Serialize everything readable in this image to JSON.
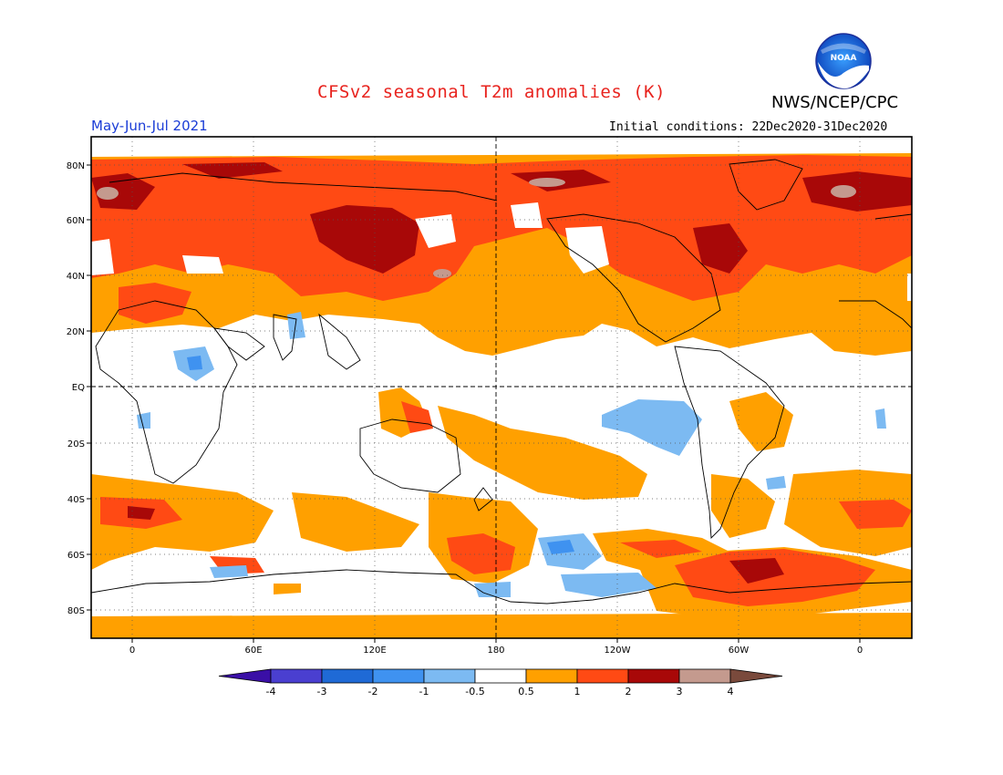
{
  "header": {
    "title": "CFSv2 seasonal T2m anomalies (K)",
    "agency": "NWS/NCEP/CPC",
    "logo_text": "NOAA",
    "season": "May-Jun-Jul 2021",
    "initial_conditions": "Initial conditions: 22Dec2020-31Dec2020"
  },
  "map": {
    "lat_labels": [
      "80N",
      "60N",
      "40N",
      "20N",
      "EQ",
      "20S",
      "40S",
      "60S",
      "80S"
    ],
    "lon_labels": [
      "0",
      "60E",
      "120E",
      "180",
      "120W",
      "60W",
      "0"
    ]
  },
  "colorbar": {
    "labels": [
      "-4",
      "-3",
      "-2",
      "-1",
      "-0.5",
      "0.5",
      "1",
      "2",
      "3",
      "4"
    ],
    "colors": [
      "#3a0fa6",
      "#4a3fd0",
      "#1f6ad6",
      "#3f92f0",
      "#7cbaf2",
      "#ffffff",
      "#ffa000",
      "#ff4a14",
      "#a80808",
      "#c49a8e",
      "#7a4a3c"
    ]
  },
  "colors": {
    "title": "#e8231e",
    "season": "#1a3cd6"
  }
}
